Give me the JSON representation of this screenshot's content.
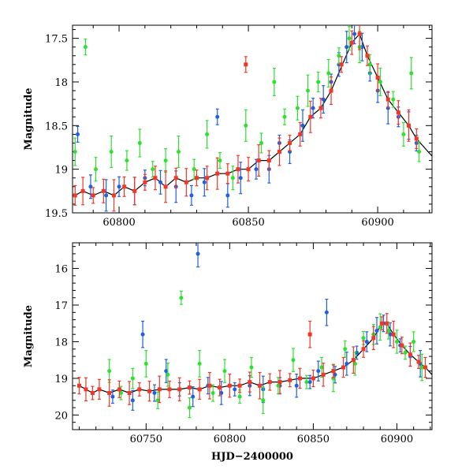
{
  "chart_data": [
    {
      "type": "scatter",
      "panel": "top",
      "ylabel": "Magnitude",
      "xlabel": "",
      "xlim": [
        60782,
        60921
      ],
      "ylim": [
        19.5,
        17.35
      ],
      "y_inverted": true,
      "xticks": [
        60800,
        60850,
        60900
      ],
      "yticks": [
        17.5,
        18,
        18.5,
        19,
        19.5
      ],
      "tick_labels_x": [
        "60800",
        "60850",
        "60900"
      ],
      "tick_labels_y": [
        "17.5",
        "18",
        "18.5",
        "19",
        "19.5"
      ],
      "grid": false,
      "series": [
        {
          "color": "#2060e0",
          "values": [
            [
              60784,
              18.6
            ],
            [
              60789,
              19.2
            ],
            [
              60795,
              19.3
            ],
            [
              60800,
              19.2
            ],
            [
              60806,
              19.25
            ],
            [
              60810,
              19.1
            ],
            [
              60816,
              19.15
            ],
            [
              60822,
              19.2
            ],
            [
              60828,
              19.3
            ],
            [
              60833,
              19.15
            ],
            [
              60838,
              18.4
            ],
            [
              60842,
              19.3
            ],
            [
              60847,
              19.1
            ],
            [
              60853,
              19.0
            ],
            [
              60858,
              19.0
            ],
            [
              60862,
              18.7
            ],
            [
              60866,
              18.8
            ],
            [
              60871,
              18.5
            ],
            [
              60875,
              18.3
            ],
            [
              60879,
              18.2
            ],
            [
              60882,
              18.0
            ],
            [
              60885,
              17.8
            ],
            [
              60888,
              17.6
            ],
            [
              60891,
              17.45
            ],
            [
              60894,
              17.6
            ],
            [
              60897,
              17.9
            ],
            [
              60900,
              18.1
            ],
            [
              60904,
              18.3
            ],
            [
              60908,
              18.4
            ],
            [
              60912,
              18.5
            ],
            [
              60915,
              18.7
            ]
          ]
        },
        {
          "color": "#30e030",
          "values": [
            [
              60783,
              18.8
            ],
            [
              60787,
              17.6
            ],
            [
              60791,
              19.0
            ],
            [
              60797,
              18.8
            ],
            [
              60803,
              18.9
            ],
            [
              60808,
              18.7
            ],
            [
              60813,
              19.0
            ],
            [
              60818,
              18.9
            ],
            [
              60823,
              18.8
            ],
            [
              60829,
              19.0
            ],
            [
              60834,
              18.6
            ],
            [
              60839,
              18.9
            ],
            [
              60844,
              19.1
            ],
            [
              60849,
              18.5
            ],
            [
              60855,
              18.7
            ],
            [
              60860,
              18.0
            ],
            [
              60864,
              18.4
            ],
            [
              60869,
              18.3
            ],
            [
              60873,
              18.1
            ],
            [
              60877,
              18.0
            ],
            [
              60881,
              17.9
            ],
            [
              60885,
              17.7
            ],
            [
              60889,
              17.5
            ],
            [
              60893,
              17.6
            ],
            [
              60897,
              17.8
            ],
            [
              60901,
              18.0
            ],
            [
              60906,
              18.2
            ],
            [
              60910,
              18.6
            ],
            [
              60913,
              17.9
            ],
            [
              60916,
              18.8
            ]
          ]
        },
        {
          "color": "#f03828",
          "values": [
            [
              60783,
              19.3
            ],
            [
              60786,
              19.25
            ],
            [
              60790,
              19.3
            ],
            [
              60794,
              19.25
            ],
            [
              60798,
              19.3
            ],
            [
              60802,
              19.2
            ],
            [
              60806,
              19.25
            ],
            [
              60810,
              19.15
            ],
            [
              60814,
              19.1
            ],
            [
              60818,
              19.2
            ],
            [
              60822,
              19.1
            ],
            [
              60826,
              19.15
            ],
            [
              60830,
              19.1
            ],
            [
              60834,
              19.1
            ],
            [
              60838,
              19.05
            ],
            [
              60842,
              19.05
            ],
            [
              60846,
              19.0
            ],
            [
              60849,
              17.8
            ],
            [
              60850,
              19.0
            ],
            [
              60854,
              18.9
            ],
            [
              60858,
              18.9
            ],
            [
              60862,
              18.8
            ],
            [
              60866,
              18.7
            ],
            [
              60870,
              18.6
            ],
            [
              60874,
              18.4
            ],
            [
              60878,
              18.3
            ],
            [
              60882,
              18.1
            ],
            [
              60886,
              17.8
            ],
            [
              60890,
              17.55
            ],
            [
              60893,
              17.45
            ],
            [
              60896,
              17.7
            ],
            [
              60900,
              17.95
            ],
            [
              60904,
              18.2
            ],
            [
              60908,
              18.35
            ],
            [
              60912,
              18.5
            ],
            [
              60915,
              18.65
            ]
          ]
        }
      ]
    },
    {
      "type": "scatter",
      "panel": "bottom",
      "ylabel": "Magnitude",
      "xlabel": "HJD−2400000",
      "xlim": [
        60706,
        60921
      ],
      "ylim": [
        20.4,
        15.3
      ],
      "y_inverted": true,
      "xticks": [
        60750,
        60800,
        60850,
        60900
      ],
      "yticks": [
        16,
        17,
        18,
        19,
        20
      ],
      "tick_labels_x": [
        "60750",
        "60800",
        "60850",
        "60900"
      ],
      "tick_labels_y": [
        "16",
        "17",
        "18",
        "19",
        "20"
      ],
      "grid": false,
      "series": [
        {
          "color": "#2060e0",
          "values": [
            [
              60730,
              19.5
            ],
            [
              60742,
              19.6
            ],
            [
              60748,
              17.8
            ],
            [
              60755,
              19.4
            ],
            [
              60762,
              18.8
            ],
            [
              60770,
              19.3
            ],
            [
              60778,
              19.5
            ],
            [
              60781,
              15.6
            ],
            [
              60787,
              19.2
            ],
            [
              60795,
              19.4
            ],
            [
              60803,
              19.3
            ],
            [
              60812,
              19.2
            ],
            [
              60820,
              19.3
            ],
            [
              60830,
              19.2
            ],
            [
              60840,
              19.2
            ],
            [
              60848,
              19.1
            ],
            [
              60853,
              18.8
            ],
            [
              60858,
              17.2
            ],
            [
              60863,
              18.9
            ],
            [
              60870,
              18.6
            ],
            [
              60876,
              18.3
            ],
            [
              60882,
              18.0
            ],
            [
              60888,
              17.7
            ],
            [
              60892,
              17.5
            ],
            [
              60896,
              17.8
            ],
            [
              60902,
              18.1
            ],
            [
              60908,
              18.4
            ],
            [
              60914,
              18.6
            ]
          ]
        },
        {
          "color": "#30e030",
          "values": [
            [
              60728,
              18.8
            ],
            [
              60735,
              19.4
            ],
            [
              60742,
              19.0
            ],
            [
              60750,
              18.6
            ],
            [
              60757,
              19.6
            ],
            [
              60763,
              18.9
            ],
            [
              60771,
              16.8
            ],
            [
              60776,
              19.8
            ],
            [
              60782,
              18.6
            ],
            [
              60790,
              19.4
            ],
            [
              60797,
              18.8
            ],
            [
              60806,
              19.5
            ],
            [
              60813,
              18.7
            ],
            [
              60820,
              19.6
            ],
            [
              60829,
              19.2
            ],
            [
              60838,
              18.5
            ],
            [
              60846,
              19.1
            ],
            [
              60855,
              18.7
            ],
            [
              60862,
              19.0
            ],
            [
              60869,
              18.2
            ],
            [
              60875,
              18.6
            ],
            [
              60880,
              17.9
            ],
            [
              60886,
              17.8
            ],
            [
              60890,
              17.6
            ],
            [
              60895,
              17.7
            ],
            [
              60900,
              18.0
            ],
            [
              60905,
              18.3
            ],
            [
              60910,
              18.0
            ],
            [
              60915,
              18.7
            ]
          ]
        },
        {
          "color": "#f03828",
          "values": [
            [
              60710,
              19.2
            ],
            [
              60714,
              19.3
            ],
            [
              60718,
              19.4
            ],
            [
              60722,
              19.3
            ],
            [
              60728,
              19.4
            ],
            [
              60734,
              19.3
            ],
            [
              60740,
              19.4
            ],
            [
              60746,
              19.3
            ],
            [
              60752,
              19.35
            ],
            [
              60758,
              19.3
            ],
            [
              60764,
              19.3
            ],
            [
              60770,
              19.3
            ],
            [
              60776,
              19.25
            ],
            [
              60782,
              19.3
            ],
            [
              60788,
              19.2
            ],
            [
              60794,
              19.25
            ],
            [
              60800,
              19.2
            ],
            [
              60806,
              19.2
            ],
            [
              60812,
              19.1
            ],
            [
              60818,
              19.2
            ],
            [
              60824,
              19.1
            ],
            [
              60830,
              19.1
            ],
            [
              60836,
              19.05
            ],
            [
              60842,
              19.0
            ],
            [
              60848,
              17.8
            ],
            [
              60850,
              19.0
            ],
            [
              60856,
              18.9
            ],
            [
              60862,
              18.8
            ],
            [
              60868,
              18.7
            ],
            [
              60874,
              18.5
            ],
            [
              60880,
              18.2
            ],
            [
              60886,
              17.9
            ],
            [
              60891,
              17.5
            ],
            [
              60894,
              17.5
            ],
            [
              60898,
              17.8
            ],
            [
              60903,
              18.1
            ],
            [
              60908,
              18.35
            ],
            [
              60913,
              18.55
            ],
            [
              60917,
              18.7
            ]
          ]
        }
      ]
    }
  ]
}
